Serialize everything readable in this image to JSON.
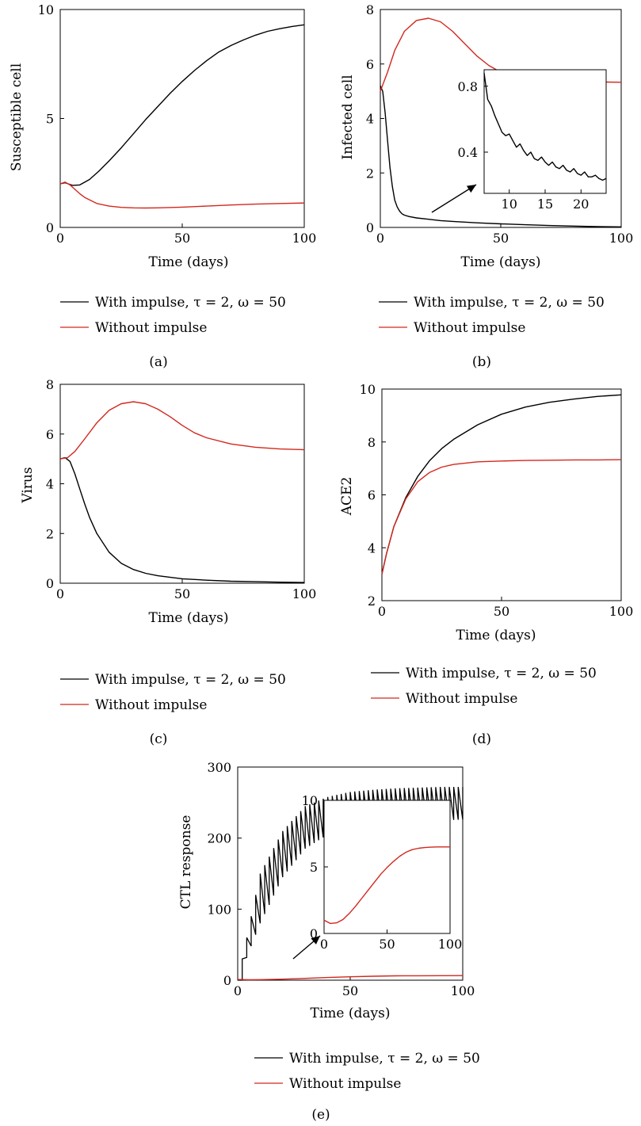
{
  "legend": {
    "with_impulse": "With impulse, τ = 2, ω = 50",
    "without_impulse": "Without impulse"
  },
  "colors": {
    "with_impulse": "#000000",
    "without_impulse": "#d2281e"
  },
  "chart_data": [
    {
      "id": "a",
      "type": "line",
      "caption": "(a)",
      "xlabel": "Time (days)",
      "ylabel": "Susceptible cell",
      "xlim": [
        0,
        100
      ],
      "ylim": [
        0,
        10
      ],
      "xticks": [
        0,
        50,
        100
      ],
      "yticks": [
        0,
        5,
        10
      ],
      "series": [
        {
          "name": "With impulse, τ = 2, ω = 50",
          "x": [
            0,
            2,
            5,
            8,
            12,
            16,
            20,
            25,
            30,
            35,
            40,
            45,
            50,
            55,
            60,
            65,
            70,
            75,
            80,
            85,
            90,
            95,
            100
          ],
          "y": [
            2.0,
            2.05,
            1.93,
            1.95,
            2.2,
            2.6,
            3.05,
            3.65,
            4.3,
            4.95,
            5.55,
            6.15,
            6.7,
            7.2,
            7.65,
            8.05,
            8.35,
            8.6,
            8.82,
            9.0,
            9.12,
            9.22,
            9.3
          ]
        },
        {
          "name": "Without impulse",
          "x": [
            0,
            2,
            4,
            6,
            8,
            10,
            15,
            20,
            25,
            30,
            35,
            40,
            50,
            60,
            70,
            80,
            90,
            100
          ],
          "y": [
            2.0,
            2.08,
            1.95,
            1.75,
            1.55,
            1.38,
            1.1,
            0.98,
            0.92,
            0.9,
            0.89,
            0.9,
            0.93,
            0.98,
            1.03,
            1.07,
            1.1,
            1.12
          ]
        }
      ]
    },
    {
      "id": "b",
      "type": "line",
      "caption": "(b)",
      "xlabel": "Time (days)",
      "ylabel": "Infected cell",
      "xlim": [
        0,
        100
      ],
      "ylim": [
        0,
        8
      ],
      "xticks": [
        0,
        50,
        100
      ],
      "yticks": [
        0,
        2,
        4,
        6,
        8
      ],
      "series": [
        {
          "name": "With impulse, τ = 2, ω = 50",
          "x": [
            0,
            1,
            2,
            3,
            4,
            5,
            6,
            7,
            8,
            9,
            10,
            12,
            15,
            20,
            25,
            30,
            40,
            50,
            60,
            70,
            80,
            90,
            100
          ],
          "y": [
            5.2,
            5.0,
            4.2,
            3.2,
            2.2,
            1.5,
            1.0,
            0.75,
            0.6,
            0.5,
            0.45,
            0.4,
            0.35,
            0.3,
            0.25,
            0.22,
            0.17,
            0.13,
            0.1,
            0.07,
            0.05,
            0.03,
            0.02
          ]
        },
        {
          "name": "Without impulse",
          "x": [
            0,
            3,
            6,
            10,
            15,
            20,
            25,
            30,
            35,
            40,
            45,
            50,
            55,
            60,
            65,
            70,
            80,
            90,
            100
          ],
          "y": [
            5.0,
            5.7,
            6.5,
            7.2,
            7.6,
            7.68,
            7.55,
            7.2,
            6.75,
            6.3,
            5.95,
            5.7,
            5.55,
            5.45,
            5.4,
            5.38,
            5.35,
            5.34,
            5.33
          ]
        }
      ],
      "inset": {
        "xlim": [
          6.5,
          23.5
        ],
        "ylim": [
          0.15,
          0.9
        ],
        "xticks": [
          10,
          15,
          20
        ],
        "yticks": [
          0.4,
          0.8
        ],
        "series": [
          {
            "name": "With impulse, τ = 2, ω = 50",
            "x": [
              6.5,
              7,
              7.5,
              8,
              8.5,
              9,
              9.5,
              10,
              10.5,
              11,
              11.5,
              12,
              12.5,
              13,
              13.5,
              14,
              14.5,
              15,
              15.5,
              16,
              16.5,
              17,
              17.5,
              18,
              18.5,
              19,
              19.5,
              20,
              20.5,
              21,
              21.5,
              22,
              22.5,
              23,
              23.5
            ],
            "y": [
              0.88,
              0.72,
              0.68,
              0.62,
              0.57,
              0.52,
              0.5,
              0.51,
              0.47,
              0.43,
              0.45,
              0.41,
              0.38,
              0.4,
              0.36,
              0.35,
              0.37,
              0.34,
              0.32,
              0.34,
              0.31,
              0.3,
              0.32,
              0.29,
              0.28,
              0.3,
              0.27,
              0.26,
              0.28,
              0.25,
              0.25,
              0.26,
              0.24,
              0.23,
              0.24
            ]
          }
        ]
      }
    },
    {
      "id": "c",
      "type": "line",
      "caption": "(c)",
      "xlabel": "Time (days)",
      "ylabel": "Virus",
      "xlim": [
        0,
        100
      ],
      "ylim": [
        0,
        8
      ],
      "xticks": [
        0,
        50,
        100
      ],
      "yticks": [
        0,
        2,
        4,
        6,
        8
      ],
      "series": [
        {
          "name": "With impulse, τ = 2, ω = 50",
          "x": [
            0,
            2,
            4,
            6,
            8,
            10,
            12,
            15,
            20,
            25,
            30,
            35,
            40,
            50,
            60,
            70,
            80,
            90,
            100
          ],
          "y": [
            5.0,
            5.05,
            4.9,
            4.4,
            3.8,
            3.2,
            2.65,
            2.0,
            1.25,
            0.8,
            0.55,
            0.4,
            0.3,
            0.18,
            0.12,
            0.08,
            0.06,
            0.04,
            0.03
          ]
        },
        {
          "name": "Without impulse",
          "x": [
            0,
            3,
            6,
            10,
            15,
            20,
            25,
            30,
            35,
            40,
            45,
            50,
            55,
            60,
            70,
            80,
            90,
            100
          ],
          "y": [
            5.0,
            5.05,
            5.3,
            5.8,
            6.45,
            6.95,
            7.22,
            7.3,
            7.22,
            7.0,
            6.7,
            6.35,
            6.05,
            5.85,
            5.6,
            5.47,
            5.4,
            5.37
          ]
        }
      ]
    },
    {
      "id": "d",
      "type": "line",
      "caption": "(d)",
      "xlabel": "Time (days)",
      "ylabel": "ACE2",
      "xlim": [
        0,
        100
      ],
      "ylim": [
        2,
        10
      ],
      "xticks": [
        0,
        50,
        100
      ],
      "yticks": [
        2,
        4,
        6,
        8,
        10
      ],
      "series": [
        {
          "name": "With impulse, τ = 2, ω = 50",
          "x": [
            0,
            2,
            5,
            10,
            15,
            20,
            25,
            30,
            40,
            50,
            60,
            70,
            80,
            90,
            100
          ],
          "y": [
            3.0,
            3.8,
            4.8,
            5.9,
            6.7,
            7.3,
            7.75,
            8.1,
            8.65,
            9.05,
            9.32,
            9.5,
            9.62,
            9.72,
            9.78
          ]
        },
        {
          "name": "Without impulse",
          "x": [
            0,
            2,
            5,
            10,
            15,
            20,
            25,
            30,
            40,
            50,
            60,
            70,
            80,
            90,
            100
          ],
          "y": [
            3.0,
            3.8,
            4.8,
            5.85,
            6.5,
            6.85,
            7.05,
            7.15,
            7.25,
            7.28,
            7.3,
            7.31,
            7.32,
            7.32,
            7.33
          ]
        }
      ]
    },
    {
      "id": "e",
      "type": "line",
      "caption": "(e)",
      "xlabel": "Time (days)",
      "ylabel": "CTL response",
      "xlim": [
        0,
        100
      ],
      "ylim": [
        0,
        300
      ],
      "xticks": [
        0,
        50,
        100
      ],
      "yticks": [
        0,
        100,
        200,
        300
      ],
      "series": [
        {
          "name": "With impulse, τ = 2, ω = 50",
          "x": [
            0,
            10,
            20,
            30,
            40,
            50,
            60,
            70,
            80,
            90,
            100
          ],
          "y_min": [
            0,
            80,
            145,
            185,
            205,
            215,
            220,
            222,
            224,
            225,
            226
          ],
          "y_max": [
            0,
            150,
            210,
            245,
            258,
            265,
            268,
            270,
            271,
            272,
            272
          ],
          "impulse_period": 2
        },
        {
          "name": "Without impulse",
          "x": [
            0,
            5,
            10,
            20,
            30,
            40,
            50,
            60,
            70,
            80,
            90,
            100
          ],
          "y": [
            1.0,
            0.7,
            0.8,
            1.5,
            2.6,
            3.8,
            4.8,
            5.6,
            6.1,
            6.3,
            6.4,
            6.5
          ]
        }
      ],
      "inset": {
        "xlim": [
          0,
          100
        ],
        "ylim": [
          0,
          10
        ],
        "xticks": [
          0,
          50,
          100
        ],
        "yticks": [
          0,
          5,
          10
        ],
        "series": [
          {
            "name": "Without impulse",
            "x": [
              0,
              5,
              10,
              15,
              20,
              25,
              30,
              35,
              40,
              45,
              50,
              55,
              60,
              65,
              70,
              75,
              80,
              85,
              90,
              95,
              100
            ],
            "y": [
              1.0,
              0.75,
              0.8,
              1.05,
              1.5,
              2.05,
              2.65,
              3.25,
              3.85,
              4.45,
              4.95,
              5.4,
              5.8,
              6.1,
              6.3,
              6.4,
              6.45,
              6.48,
              6.5,
              6.5,
              6.5
            ]
          }
        ]
      }
    }
  ]
}
